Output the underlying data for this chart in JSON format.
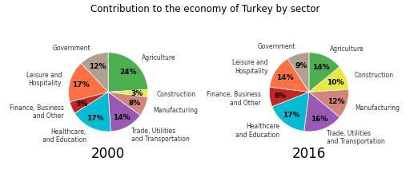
{
  "title": "Contribution to the economy of Turkey by sector",
  "chart2000": {
    "labels": [
      "Agriculture",
      "Construction",
      "Manufacturing",
      "Trade, Utilities\nand Transportation",
      "Healthcare,\nand Education",
      "Finance, Business\nand Other",
      "Leisure and\nHospitality",
      "Government"
    ],
    "values": [
      24,
      3,
      8,
      14,
      17,
      5,
      17,
      12
    ],
    "colors": [
      "#4caf50",
      "#e8e840",
      "#d4857a",
      "#9b59b6",
      "#00bcd4",
      "#cc2222",
      "#ff7043",
      "#b0a090"
    ],
    "year": "2000"
  },
  "chart2016": {
    "labels": [
      "Agriculture",
      "Construction",
      "Manufacturing",
      "Trade, Utilities\nand Transportation",
      "Healthcare\nand Education",
      "Finance, Business\nand Other",
      "Leisure and\nHospitality",
      "Government"
    ],
    "values": [
      14,
      10,
      12,
      16,
      17,
      8,
      14,
      9
    ],
    "colors": [
      "#4caf50",
      "#e8e840",
      "#d4857a",
      "#9b59b6",
      "#00bcd4",
      "#cc2222",
      "#ff7043",
      "#b0a090"
    ],
    "year": "2016"
  },
  "label_fontsize": 5.5,
  "pct_fontsize": 6.5,
  "title_fontsize": 8.5,
  "year_fontsize": 12
}
